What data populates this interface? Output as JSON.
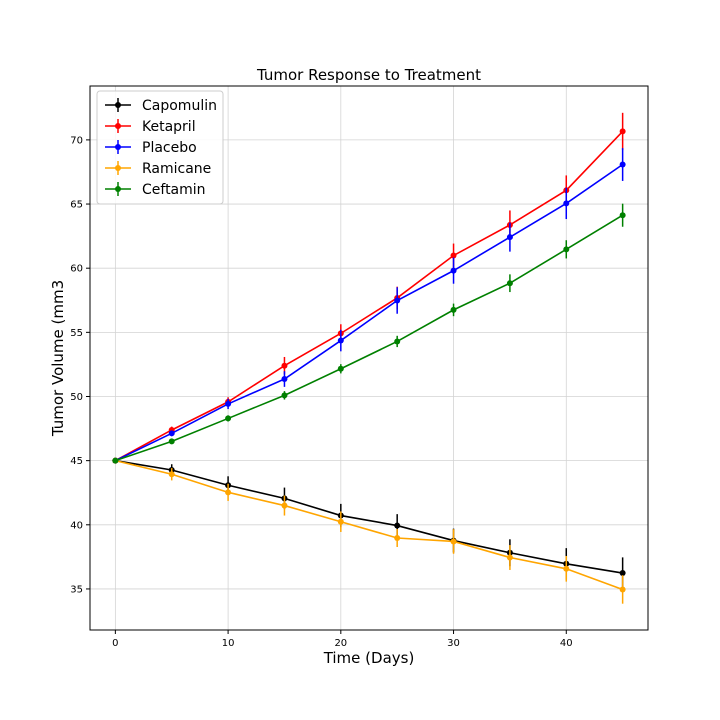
{
  "chart_data": {
    "type": "line",
    "title": "Tumor Response to Treatment",
    "xlabel": "Time (Days)",
    "ylabel": "Tumor Volume (mm3",
    "xlim": [
      -2.25,
      47.25
    ],
    "ylim": [
      31.8,
      74.2
    ],
    "xticks": [
      0,
      10,
      20,
      30,
      40
    ],
    "yticks": [
      35,
      40,
      45,
      50,
      55,
      60,
      65,
      70
    ],
    "grid": true,
    "legend_position": "top-left",
    "x": [
      0,
      5,
      10,
      15,
      20,
      25,
      30,
      35,
      40,
      45
    ],
    "series": [
      {
        "name": "Capomulin",
        "color": "#000000",
        "values": [
          45.0,
          44.27,
          43.08,
          42.06,
          40.72,
          39.94,
          38.77,
          37.82,
          36.96,
          36.24
        ],
        "errors": [
          0,
          0.45,
          0.7,
          0.84,
          0.91,
          0.89,
          0.93,
          1.05,
          1.22,
          1.22
        ]
      },
      {
        "name": "Ketapril",
        "color": "#ff0000",
        "values": [
          45.0,
          47.39,
          49.58,
          52.4,
          54.92,
          57.68,
          60.99,
          63.37,
          66.07,
          70.66
        ],
        "errors": [
          0,
          0.26,
          0.36,
          0.68,
          0.71,
          0.88,
          0.93,
          1.13,
          1.16,
          1.45
        ]
      },
      {
        "name": "Placebo",
        "color": "#0000ff",
        "values": [
          45.0,
          47.13,
          49.42,
          51.36,
          54.36,
          57.48,
          59.81,
          62.42,
          65.05,
          68.08
        ],
        "errors": [
          0,
          0.22,
          0.4,
          0.61,
          0.84,
          1.03,
          1.02,
          1.13,
          1.22,
          1.28
        ]
      },
      {
        "name": "Ramicane",
        "color": "#ffa500",
        "values": [
          45.0,
          43.94,
          42.53,
          41.5,
          40.24,
          38.97,
          38.7,
          37.45,
          36.57,
          34.96
        ],
        "errors": [
          0,
          0.48,
          0.67,
          0.78,
          0.8,
          0.7,
          0.96,
          0.97,
          1.0,
          1.11
        ]
      },
      {
        "name": "Ceftamin",
        "color": "#008000",
        "values": [
          45.0,
          46.5,
          48.29,
          50.09,
          52.16,
          54.29,
          56.75,
          58.83,
          61.47,
          64.13
        ],
        "errors": [
          0,
          0.16,
          0.24,
          0.33,
          0.36,
          0.44,
          0.49,
          0.69,
          0.71,
          0.9
        ]
      }
    ]
  }
}
